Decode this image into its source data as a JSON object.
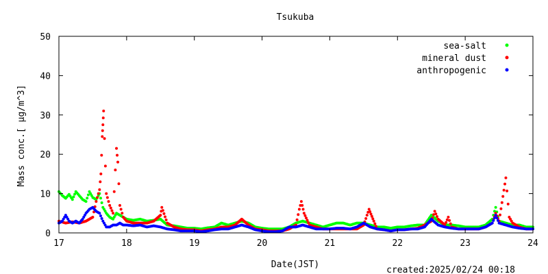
{
  "chart_data": {
    "type": "scatter",
    "title": "Tsukuba",
    "xlabel": "Date(JST)",
    "ylabel": "Mass conc.[ μg/m^3]",
    "xlim": [
      17,
      24
    ],
    "ylim": [
      0,
      50
    ],
    "x_ticks": [
      "17",
      "18",
      "19",
      "20",
      "21",
      "22",
      "23",
      "24"
    ],
    "y_ticks": [
      "0",
      "10",
      "20",
      "30",
      "40",
      "50"
    ],
    "grid": false,
    "legend_position": "top-right",
    "series": [
      {
        "name": "sea-salt",
        "color": "#00ff00",
        "points": [
          [
            17.0,
            10.5
          ],
          [
            17.05,
            9.5
          ],
          [
            17.1,
            8.8
          ],
          [
            17.15,
            9.8
          ],
          [
            17.2,
            8.5
          ],
          [
            17.25,
            10.5
          ],
          [
            17.3,
            9.5
          ],
          [
            17.35,
            8.5
          ],
          [
            17.4,
            8.0
          ],
          [
            17.45,
            10.5
          ],
          [
            17.5,
            9.0
          ],
          [
            17.55,
            8.5
          ],
          [
            17.6,
            10.0
          ],
          [
            17.65,
            6.5
          ],
          [
            17.7,
            5.0
          ],
          [
            17.75,
            4.0
          ],
          [
            17.8,
            3.5
          ],
          [
            17.85,
            5.0
          ],
          [
            17.9,
            4.5
          ],
          [
            17.95,
            4.0
          ],
          [
            18.0,
            3.5
          ],
          [
            18.1,
            3.2
          ],
          [
            18.2,
            3.5
          ],
          [
            18.3,
            3.0
          ],
          [
            18.4,
            3.2
          ],
          [
            18.5,
            3.5
          ],
          [
            18.6,
            2.0
          ],
          [
            18.7,
            1.8
          ],
          [
            18.8,
            1.5
          ],
          [
            18.9,
            1.2
          ],
          [
            19.0,
            1.2
          ],
          [
            19.1,
            1.0
          ],
          [
            19.2,
            1.3
          ],
          [
            19.3,
            1.5
          ],
          [
            19.4,
            2.5
          ],
          [
            19.5,
            2.0
          ],
          [
            19.6,
            2.5
          ],
          [
            19.7,
            3.0
          ],
          [
            19.8,
            2.5
          ],
          [
            19.9,
            1.5
          ],
          [
            20.0,
            1.2
          ],
          [
            20.1,
            1.0
          ],
          [
            20.2,
            1.0
          ],
          [
            20.3,
            1.0
          ],
          [
            20.4,
            1.5
          ],
          [
            20.5,
            2.5
          ],
          [
            20.6,
            3.0
          ],
          [
            20.7,
            2.5
          ],
          [
            20.8,
            2.0
          ],
          [
            20.9,
            1.5
          ],
          [
            21.0,
            2.0
          ],
          [
            21.1,
            2.5
          ],
          [
            21.2,
            2.5
          ],
          [
            21.3,
            2.0
          ],
          [
            21.4,
            2.5
          ],
          [
            21.5,
            2.5
          ],
          [
            21.6,
            2.0
          ],
          [
            21.7,
            1.5
          ],
          [
            21.8,
            1.5
          ],
          [
            21.9,
            1.2
          ],
          [
            22.0,
            1.5
          ],
          [
            22.1,
            1.5
          ],
          [
            22.2,
            1.8
          ],
          [
            22.3,
            2.0
          ],
          [
            22.4,
            2.0
          ],
          [
            22.5,
            4.5
          ],
          [
            22.6,
            3.0
          ],
          [
            22.7,
            2.0
          ],
          [
            22.8,
            2.0
          ],
          [
            22.9,
            1.8
          ],
          [
            23.0,
            1.5
          ],
          [
            23.1,
            1.5
          ],
          [
            23.2,
            1.5
          ],
          [
            23.3,
            2.0
          ],
          [
            23.4,
            3.5
          ],
          [
            23.45,
            6.5
          ],
          [
            23.5,
            3.0
          ],
          [
            23.6,
            2.5
          ],
          [
            23.7,
            2.0
          ],
          [
            23.8,
            2.0
          ],
          [
            23.9,
            1.5
          ],
          [
            24.0,
            1.5
          ]
        ]
      },
      {
        "name": "mineral dust",
        "color": "#ff0000",
        "points": [
          [
            17.0,
            3.0
          ],
          [
            17.1,
            2.5
          ],
          [
            17.2,
            2.8
          ],
          [
            17.3,
            2.5
          ],
          [
            17.4,
            3.0
          ],
          [
            17.5,
            4.0
          ],
          [
            17.55,
            8.0
          ],
          [
            17.6,
            11.0
          ],
          [
            17.62,
            15.0
          ],
          [
            17.64,
            24.5
          ],
          [
            17.65,
            27.5
          ],
          [
            17.66,
            31.0
          ],
          [
            17.7,
            10.0
          ],
          [
            17.75,
            7.0
          ],
          [
            17.8,
            5.0
          ],
          [
            17.85,
            21.5
          ],
          [
            17.87,
            18.0
          ],
          [
            17.9,
            7.0
          ],
          [
            17.95,
            4.0
          ],
          [
            18.0,
            3.0
          ],
          [
            18.1,
            2.5
          ],
          [
            18.2,
            2.5
          ],
          [
            18.3,
            2.5
          ],
          [
            18.4,
            3.0
          ],
          [
            18.5,
            4.5
          ],
          [
            18.52,
            6.5
          ],
          [
            18.6,
            2.5
          ],
          [
            18.7,
            1.5
          ],
          [
            18.8,
            1.0
          ],
          [
            18.9,
            0.8
          ],
          [
            19.0,
            0.8
          ],
          [
            19.1,
            0.5
          ],
          [
            19.2,
            0.8
          ],
          [
            19.3,
            1.0
          ],
          [
            19.4,
            1.5
          ],
          [
            19.5,
            1.5
          ],
          [
            19.6,
            2.0
          ],
          [
            19.7,
            3.5
          ],
          [
            19.8,
            2.0
          ],
          [
            19.9,
            1.0
          ],
          [
            20.0,
            0.8
          ],
          [
            20.1,
            0.5
          ],
          [
            20.2,
            0.5
          ],
          [
            20.3,
            0.5
          ],
          [
            20.4,
            1.0
          ],
          [
            20.5,
            2.0
          ],
          [
            20.55,
            6.0
          ],
          [
            20.58,
            8.0
          ],
          [
            20.62,
            5.0
          ],
          [
            20.7,
            2.0
          ],
          [
            20.8,
            1.5
          ],
          [
            20.9,
            1.0
          ],
          [
            21.0,
            1.0
          ],
          [
            21.1,
            1.0
          ],
          [
            21.2,
            1.0
          ],
          [
            21.3,
            1.0
          ],
          [
            21.4,
            1.0
          ],
          [
            21.5,
            2.0
          ],
          [
            21.55,
            4.5
          ],
          [
            21.58,
            6.0
          ],
          [
            21.65,
            3.0
          ],
          [
            21.7,
            1.0
          ],
          [
            21.8,
            0.8
          ],
          [
            21.9,
            0.5
          ],
          [
            22.0,
            0.8
          ],
          [
            22.1,
            0.8
          ],
          [
            22.2,
            1.0
          ],
          [
            22.3,
            1.2
          ],
          [
            22.4,
            2.0
          ],
          [
            22.5,
            3.0
          ],
          [
            22.55,
            5.5
          ],
          [
            22.6,
            3.5
          ],
          [
            22.7,
            2.0
          ],
          [
            22.75,
            4.0
          ],
          [
            22.8,
            1.5
          ],
          [
            22.9,
            1.0
          ],
          [
            23.0,
            1.0
          ],
          [
            23.1,
            1.0
          ],
          [
            23.2,
            1.0
          ],
          [
            23.3,
            1.5
          ],
          [
            23.4,
            2.5
          ],
          [
            23.45,
            5.0
          ],
          [
            23.5,
            3.0
          ],
          [
            23.6,
            14.0
          ],
          [
            23.65,
            4.0
          ],
          [
            23.7,
            2.5
          ],
          [
            23.8,
            1.5
          ],
          [
            23.9,
            1.0
          ],
          [
            24.0,
            1.0
          ]
        ]
      },
      {
        "name": "anthropogenic",
        "color": "#0000ff",
        "points": [
          [
            17.0,
            2.5
          ],
          [
            17.05,
            3.0
          ],
          [
            17.1,
            4.5
          ],
          [
            17.15,
            3.0
          ],
          [
            17.2,
            2.5
          ],
          [
            17.25,
            3.0
          ],
          [
            17.3,
            2.5
          ],
          [
            17.35,
            3.5
          ],
          [
            17.4,
            5.0
          ],
          [
            17.45,
            6.0
          ],
          [
            17.5,
            6.5
          ],
          [
            17.55,
            5.5
          ],
          [
            17.6,
            5.0
          ],
          [
            17.65,
            3.0
          ],
          [
            17.7,
            1.5
          ],
          [
            17.75,
            1.5
          ],
          [
            17.8,
            2.0
          ],
          [
            17.85,
            2.0
          ],
          [
            17.9,
            2.5
          ],
          [
            17.95,
            2.0
          ],
          [
            18.0,
            2.0
          ],
          [
            18.1,
            1.8
          ],
          [
            18.2,
            2.0
          ],
          [
            18.3,
            1.5
          ],
          [
            18.4,
            1.8
          ],
          [
            18.5,
            1.5
          ],
          [
            18.6,
            1.0
          ],
          [
            18.7,
            0.8
          ],
          [
            18.8,
            0.5
          ],
          [
            18.9,
            0.5
          ],
          [
            19.0,
            0.5
          ],
          [
            19.1,
            0.3
          ],
          [
            19.2,
            0.5
          ],
          [
            19.3,
            0.8
          ],
          [
            19.4,
            1.0
          ],
          [
            19.5,
            1.0
          ],
          [
            19.6,
            1.5
          ],
          [
            19.7,
            2.0
          ],
          [
            19.8,
            1.5
          ],
          [
            19.9,
            0.8
          ],
          [
            20.0,
            0.5
          ],
          [
            20.1,
            0.3
          ],
          [
            20.2,
            0.3
          ],
          [
            20.3,
            0.5
          ],
          [
            20.4,
            1.5
          ],
          [
            20.5,
            1.5
          ],
          [
            20.6,
            2.0
          ],
          [
            20.7,
            1.5
          ],
          [
            20.8,
            1.0
          ],
          [
            20.9,
            1.0
          ],
          [
            21.0,
            1.0
          ],
          [
            21.1,
            1.2
          ],
          [
            21.2,
            1.2
          ],
          [
            21.3,
            1.0
          ],
          [
            21.4,
            1.5
          ],
          [
            21.5,
            2.5
          ],
          [
            21.6,
            1.5
          ],
          [
            21.7,
            1.0
          ],
          [
            21.8,
            0.8
          ],
          [
            21.9,
            0.5
          ],
          [
            22.0,
            0.8
          ],
          [
            22.1,
            0.8
          ],
          [
            22.2,
            1.0
          ],
          [
            22.3,
            1.0
          ],
          [
            22.4,
            1.5
          ],
          [
            22.5,
            3.5
          ],
          [
            22.6,
            2.0
          ],
          [
            22.7,
            1.5
          ],
          [
            22.8,
            1.2
          ],
          [
            22.9,
            1.0
          ],
          [
            23.0,
            1.0
          ],
          [
            23.1,
            1.0
          ],
          [
            23.2,
            1.0
          ],
          [
            23.3,
            1.5
          ],
          [
            23.4,
            2.5
          ],
          [
            23.45,
            4.5
          ],
          [
            23.5,
            2.5
          ],
          [
            23.6,
            2.0
          ],
          [
            23.7,
            1.5
          ],
          [
            23.8,
            1.2
          ],
          [
            23.9,
            1.0
          ],
          [
            24.0,
            1.0
          ]
        ]
      }
    ]
  },
  "footer": {
    "created": "created:2025/02/24 00:18"
  }
}
